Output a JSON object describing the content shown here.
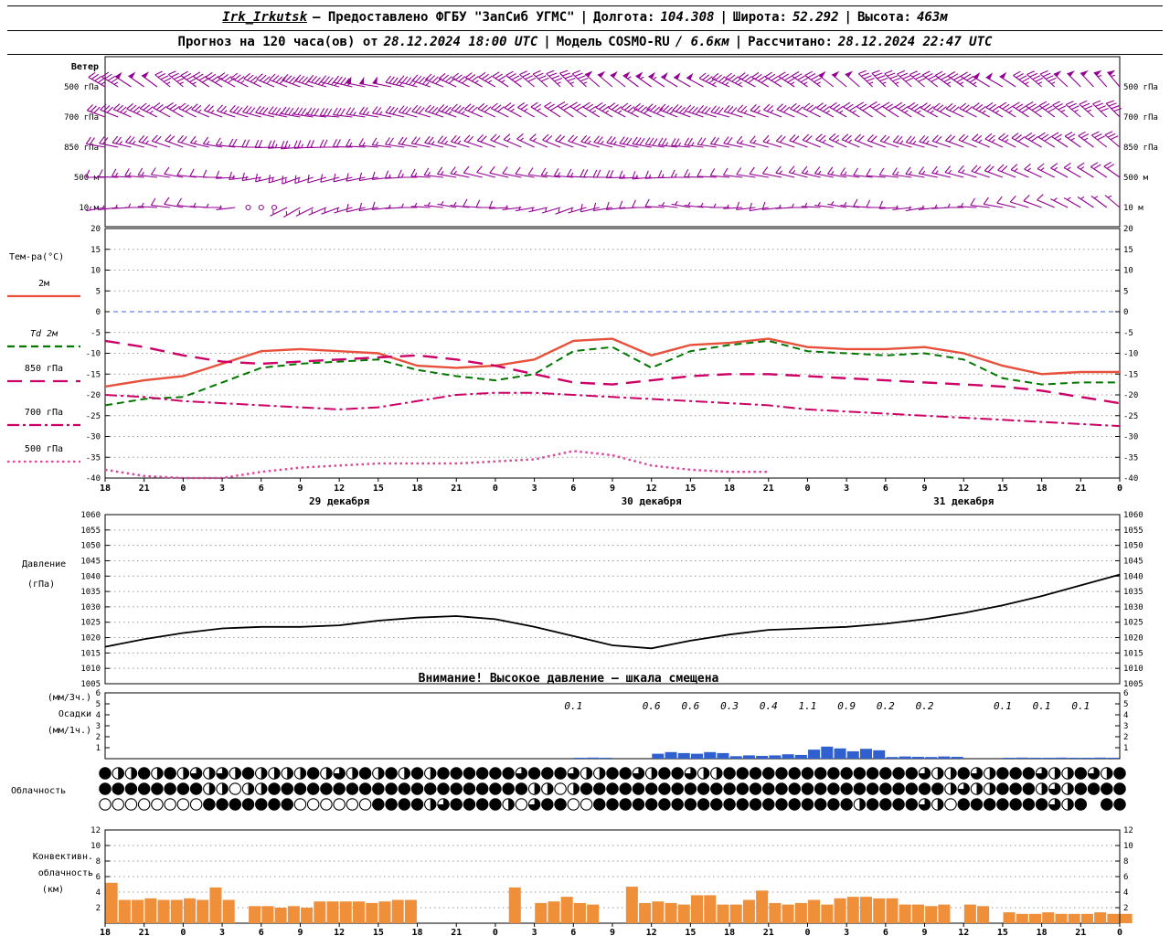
{
  "header": {
    "line1": {
      "station": "Irk_Irkutsk",
      "provided": "— Предоставлено ФГБУ \"ЗапСиб УГМС\"",
      "sep": "|",
      "lon_label": "Долгота:",
      "lon_value": "104.308",
      "lat_label": "Широта:",
      "lat_value": "52.292",
      "alt_label": "Высота:",
      "alt_value": "463м"
    },
    "line2": {
      "forecast_label": "Прогноз на 120 часа(ов) от",
      "forecast_start": "28.12.2024 18:00 UTC",
      "sep": "|",
      "model_label": "Модель",
      "model_value": "COSMO-RU",
      "model_res": "/ 6.6км",
      "calc_label": "Рассчитано:",
      "calc_value": "28.12.2024 22:47 UTC"
    }
  },
  "axis": {
    "step_hours": 3,
    "total_hours": 78,
    "hour_labels": [
      "18",
      "21",
      "0",
      "3",
      "6",
      "9",
      "12",
      "15",
      "18",
      "21",
      "0",
      "3",
      "6",
      "9",
      "12",
      "15",
      "18",
      "21",
      "0",
      "3",
      "6",
      "9",
      "12",
      "15",
      "18",
      "21",
      "0"
    ],
    "date_labels": [
      {
        "label": "29 декабря",
        "hour_offset": 18
      },
      {
        "label": "30 декабря",
        "hour_offset": 42
      },
      {
        "label": "31 декабря",
        "hour_offset": 66
      }
    ]
  },
  "panels": {
    "wind": {
      "title": "Ветер"
    },
    "temperature": {
      "title": "Тем-ра(°C)"
    },
    "pressure": {
      "title1": "Давление",
      "title2": "(гПа)"
    },
    "precip": {
      "title1": "(мм/3ч.)",
      "title2": "Осадки",
      "title3": "(мм/1ч.)"
    },
    "cloud": {
      "title": "Облачность"
    },
    "conv": {
      "title1": "Конвективн.",
      "title2": "облачность",
      "title3": "(км)"
    }
  },
  "colors": {
    "wind": "#930093",
    "pressure": "#000000",
    "precip_bar": "#3060d0",
    "conv_bar": "#ef8f3a",
    "zero_line": "#4466dd",
    "grid": "#999999"
  },
  "chart_data": [
    {
      "type": "wind-barbs",
      "title": "Ветер",
      "x_step_hours": 3,
      "levels": [
        {
          "name": "500 гПа",
          "dir_deg": [
            300,
            305,
            310,
            300,
            295,
            290,
            285,
            280,
            285,
            295,
            300,
            310,
            315,
            310,
            305,
            300,
            295,
            300,
            305,
            310,
            315,
            310,
            305,
            300,
            310,
            315,
            320
          ],
          "speed_kt": [
            45,
            50,
            45,
            40,
            35,
            40,
            45,
            50,
            45,
            40,
            35,
            40,
            45,
            50,
            55,
            50,
            45,
            40,
            45,
            50,
            45,
            40,
            45,
            50,
            45,
            50,
            55
          ]
        },
        {
          "name": "700 гПа",
          "dir_deg": [
            290,
            295,
            300,
            290,
            285,
            280,
            275,
            280,
            285,
            290,
            295,
            300,
            305,
            300,
            295,
            290,
            285,
            290,
            295,
            300,
            305,
            300,
            295,
            300,
            305,
            310,
            315
          ],
          "speed_kt": [
            30,
            35,
            30,
            25,
            30,
            35,
            30,
            25,
            30,
            35,
            30,
            25,
            30,
            35,
            40,
            35,
            30,
            25,
            30,
            35,
            30,
            35,
            30,
            35,
            40,
            35,
            40
          ]
        },
        {
          "name": "850 гПа",
          "dir_deg": [
            280,
            285,
            290,
            280,
            270,
            265,
            270,
            275,
            280,
            285,
            290,
            295,
            290,
            285,
            280,
            275,
            280,
            285,
            290,
            295,
            290,
            285,
            290,
            295,
            300,
            305,
            310
          ],
          "speed_kt": [
            20,
            25,
            20,
            15,
            20,
            25,
            20,
            15,
            20,
            25,
            20,
            15,
            20,
            25,
            30,
            25,
            20,
            15,
            20,
            25,
            20,
            25,
            20,
            25,
            30,
            25,
            30
          ]
        },
        {
          "name": "500 м",
          "dir_deg": [
            270,
            275,
            280,
            270,
            260,
            250,
            255,
            260,
            270,
            280,
            285,
            280,
            275,
            270,
            265,
            270,
            275,
            280,
            285,
            280,
            275,
            280,
            285,
            290,
            295,
            300,
            305
          ],
          "speed_kt": [
            10,
            15,
            10,
            10,
            15,
            15,
            10,
            10,
            15,
            15,
            10,
            10,
            15,
            20,
            15,
            15,
            10,
            10,
            15,
            15,
            10,
            15,
            15,
            20,
            15,
            15,
            20
          ]
        },
        {
          "name": "10 м",
          "dir_deg": [
            260,
            270,
            280,
            270,
            250,
            240,
            250,
            260,
            270,
            280,
            270,
            260,
            250,
            260,
            270,
            280,
            270,
            260,
            270,
            280,
            270,
            260,
            270,
            280,
            290,
            300,
            310
          ],
          "speed_kt": [
            5,
            5,
            10,
            5,
            0,
            5,
            5,
            10,
            5,
            5,
            10,
            5,
            5,
            10,
            10,
            5,
            5,
            10,
            5,
            5,
            10,
            5,
            5,
            10,
            10,
            5,
            5
          ]
        }
      ]
    },
    {
      "type": "line",
      "title": "Температура",
      "ylabel": "Тем-ра(°C)",
      "ylim": [
        -40,
        20
      ],
      "yticks": [
        20,
        15,
        10,
        5,
        0,
        -5,
        -10,
        -15,
        -20,
        -25,
        -30,
        -35,
        -40
      ],
      "x_step_hours": 3,
      "series": [
        {
          "name": "2м",
          "style": "solid",
          "color": "#e8503c",
          "values": [
            -18,
            -16.5,
            -15.5,
            -12.5,
            -9.5,
            -9,
            -9.5,
            -10,
            -13,
            -13.5,
            -13,
            -11.5,
            -7,
            -6.5,
            -10.5,
            -8,
            -7.5,
            -6.5,
            -8.5,
            -9,
            -9,
            -8.5,
            -10,
            -13,
            -15,
            -14.5,
            -14.5
          ]
        },
        {
          "name": "Td 2м",
          "style": "dashed",
          "color": "#007700",
          "values": [
            -22.5,
            -21,
            -20.5,
            -17,
            -13.5,
            -12.5,
            -12,
            -11.5,
            -14,
            -15.5,
            -16.5,
            -15,
            -9.5,
            -8.5,
            -13.5,
            -9.5,
            -8,
            -7,
            -9.5,
            -10,
            -10.5,
            -10,
            -11.5,
            -16,
            -17.5,
            -17,
            -17
          ]
        },
        {
          "name": "850 гПа",
          "style": "longdash",
          "color": "#cc0066",
          "values": [
            -7,
            -8.5,
            -10.5,
            -12,
            -12.5,
            -12,
            -11.5,
            -11,
            -10.5,
            -11.5,
            -13,
            -15,
            -17,
            -17.5,
            -16.5,
            -15.5,
            -15,
            -15,
            -15.5,
            -16,
            -16.5,
            -17,
            -17.5,
            -18,
            -19,
            -20.5,
            -22
          ]
        },
        {
          "name": "700 гПа",
          "style": "dashdot",
          "color": "#cc0066",
          "values": [
            -20,
            -20.5,
            -21.5,
            -22,
            -22.5,
            -23,
            -23.5,
            -23,
            -21.5,
            -20,
            -19.5,
            -19.5,
            -20,
            -20.5,
            -21,
            -21.5,
            -22,
            -22.5,
            -23.5,
            -24,
            -24.5,
            -25,
            -25.5,
            -26,
            -26.5,
            -27,
            -27.5
          ]
        },
        {
          "name": "500 гПа",
          "style": "dotted",
          "color": "#dd4499",
          "values": [
            -38,
            -39.5,
            -40,
            -40,
            -38.5,
            -37.5,
            -37,
            -36.5,
            -36.5,
            -36.5,
            -36,
            -35.5,
            -33.5,
            -34.5,
            -37,
            -38,
            -38.5,
            -38.5,
            null,
            null,
            null,
            null,
            null,
            null,
            null,
            null,
            null
          ]
        }
      ]
    },
    {
      "type": "line",
      "title": "Давление",
      "ylabel": "Давление (гПа)",
      "ylim": [
        1005,
        1060
      ],
      "yticks": [
        1060,
        1055,
        1050,
        1045,
        1040,
        1035,
        1030,
        1025,
        1020,
        1015,
        1010,
        1005
      ],
      "x_step_hours": 3,
      "annotation": "Внимание! Высокое давление — шкала смещена",
      "series": [
        {
          "name": "Давление",
          "style": "solid",
          "color": "#000000",
          "values": [
            1017,
            1019.5,
            1021.5,
            1023,
            1023.5,
            1023.5,
            1024,
            1025.5,
            1026.5,
            1027,
            1026,
            1023.5,
            1020.5,
            1017.5,
            1016.5,
            1019,
            1021,
            1022.5,
            1023,
            1023.5,
            1024.5,
            1026,
            1028,
            1030.5,
            1033.5,
            1037,
            1040.5
          ]
        }
      ]
    },
    {
      "type": "bar",
      "title": "Осадки",
      "ylabel": "(мм/3ч.) Осадки (мм/1ч.)",
      "ylim": [
        0,
        6
      ],
      "yticks": [
        6,
        5,
        4,
        3,
        2,
        1
      ],
      "x_step_hours": 3,
      "values_3h": [
        0,
        0,
        0,
        0,
        0,
        0,
        0,
        0,
        0,
        0,
        0,
        0,
        0.1,
        0,
        0.6,
        0.6,
        0.3,
        0.4,
        1.1,
        0.9,
        0.2,
        0.2,
        0,
        0.1,
        0.1,
        0.1,
        0
      ],
      "labels": [
        {
          "hour": 36,
          "text": "0.1"
        },
        {
          "hour": 42,
          "text": "0.6"
        },
        {
          "hour": 45,
          "text": "0.6"
        },
        {
          "hour": 48,
          "text": "0.3"
        },
        {
          "hour": 51,
          "text": "0.4"
        },
        {
          "hour": 54,
          "text": "1.1"
        },
        {
          "hour": 57,
          "text": "0.9"
        },
        {
          "hour": 60,
          "text": "0.2"
        },
        {
          "hour": 63,
          "text": "0.2"
        },
        {
          "hour": 69,
          "text": "0.1"
        },
        {
          "hour": 72,
          "text": "0.1"
        },
        {
          "hour": 75,
          "text": "0.1"
        }
      ]
    },
    {
      "type": "symbols",
      "title": "Облачность",
      "rows_oktas": [
        "8448484646484444846484848488888868886448864886448888888888888886448648886448648",
        "8888888844044888888888888888888884404888888888888888888888888888846448884648888 ",
        "0000000088888880000008888468888406880088888888888888888888488886408888888648 88"
      ]
    },
    {
      "type": "bar",
      "title": "Конвективная облачность",
      "ylabel": "Конвективн. облачность (км)",
      "ylim": [
        0,
        12
      ],
      "yticks": [
        12,
        10,
        8,
        6,
        4,
        2
      ],
      "x_step_hours": 1,
      "values_km_1h": [
        5.2,
        3,
        3,
        3.2,
        3,
        3,
        3.2,
        3,
        4.6,
        3,
        0,
        2.2,
        2.2,
        2,
        2.2,
        2,
        2.8,
        2.8,
        2.8,
        2.8,
        2.6,
        2.8,
        3,
        3,
        0,
        0,
        0,
        0,
        0,
        0,
        0,
        4.6,
        0,
        2.6,
        2.8,
        3.4,
        2.6,
        2.4,
        0,
        0,
        4.7,
        2.6,
        2.8,
        2.6,
        2.4,
        3.6,
        3.6,
        2.4,
        2.4,
        3,
        4.2,
        2.6,
        2.4,
        2.6,
        3,
        2.4,
        3.2,
        3.4,
        3.4,
        3.2,
        3.2,
        2.4,
        2.4,
        2.2,
        2.4,
        0,
        2.4,
        2.2,
        0,
        1.4,
        1.2,
        1.2,
        1.4,
        1.2,
        1.2,
        1.2,
        1.4,
        1.2,
        1.2
      ]
    }
  ]
}
